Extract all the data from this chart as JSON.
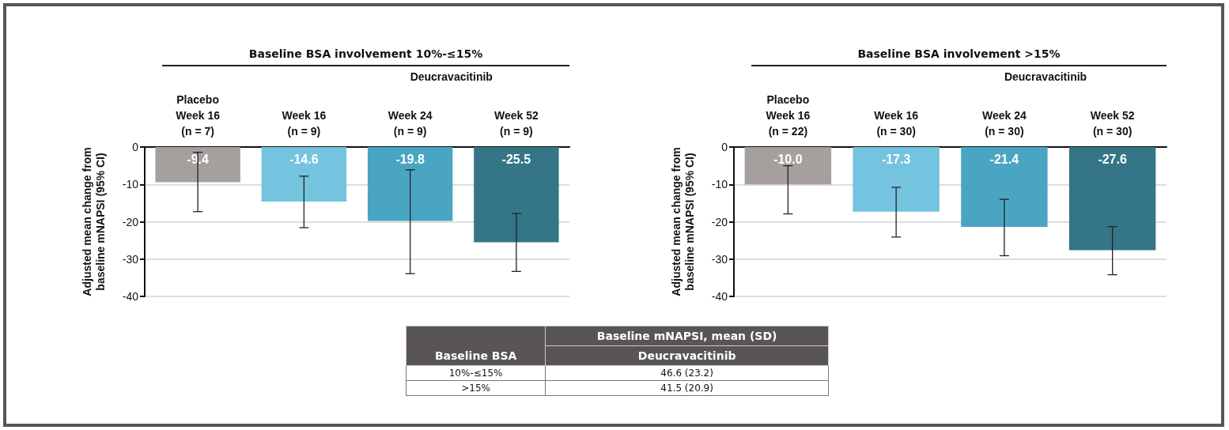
{
  "chart_data": [
    {
      "type": "bar",
      "title": "Baseline BSA involvement 10%-≤15%",
      "subtitle": "Deucravacitinib",
      "ylabel": "Adjusted mean change from\nbaseline mNAPSI (95% CI)",
      "categories": [
        "Placebo\nWeek 16\n(n = 7)",
        "Week 16\n(n = 9)",
        "Week 24\n(n = 9)",
        "Week 52\n(n = 9)"
      ],
      "values": [
        -9.4,
        -14.6,
        -19.8,
        -25.5
      ],
      "colors": [
        "#a5a09e",
        "#74c3df",
        "#4aa5c2",
        "#347587"
      ],
      "errors": [
        [
          -17.3,
          -1.4
        ],
        [
          -21.6,
          -7.8
        ],
        [
          -33.9,
          -6.1
        ],
        [
          -33.3,
          -17.8
        ]
      ],
      "ylim": [
        -40,
        0
      ],
      "yticks": [
        -40,
        -30,
        -20,
        -10,
        0
      ],
      "grid": "y",
      "data_labels": true
    },
    {
      "type": "bar",
      "title": "Baseline BSA involvement >15%",
      "subtitle": "Deucravacitinib",
      "ylabel": "Adjusted mean change from\nbaseline mNAPSI (95% CI)",
      "categories": [
        "Placebo\nWeek 16\n(n = 22)",
        "Week 16\n(n = 30)",
        "Week 24\n(n = 30)",
        "Week 52\n(n = 30)"
      ],
      "values": [
        -10.0,
        -17.3,
        -21.4,
        -27.6
      ],
      "value_labels": [
        "-10.0",
        "-17.3",
        "-21.4",
        "-27.6"
      ],
      "colors": [
        "#a5a09e",
        "#74c3df",
        "#4aa5c2",
        "#347587"
      ],
      "errors": [
        [
          -17.9,
          -5.0
        ],
        [
          -24.1,
          -10.8
        ],
        [
          -29.1,
          -14.0
        ],
        [
          -34.2,
          -21.3
        ]
      ],
      "ylim": [
        -40,
        0
      ],
      "yticks": [
        -40,
        -30,
        -20,
        -10,
        0
      ],
      "grid": "y"
    },
    {
      "type": "other",
      "annotations": [
        "Baseline mNAPSI, mean (SD)",
        "Baseline BSA",
        "Deucravacitinib",
        "10%-≤15%",
        "46.6 (23.2)",
        ">15%",
        "41.5 (20.9)"
      ]
    }
  ]
}
